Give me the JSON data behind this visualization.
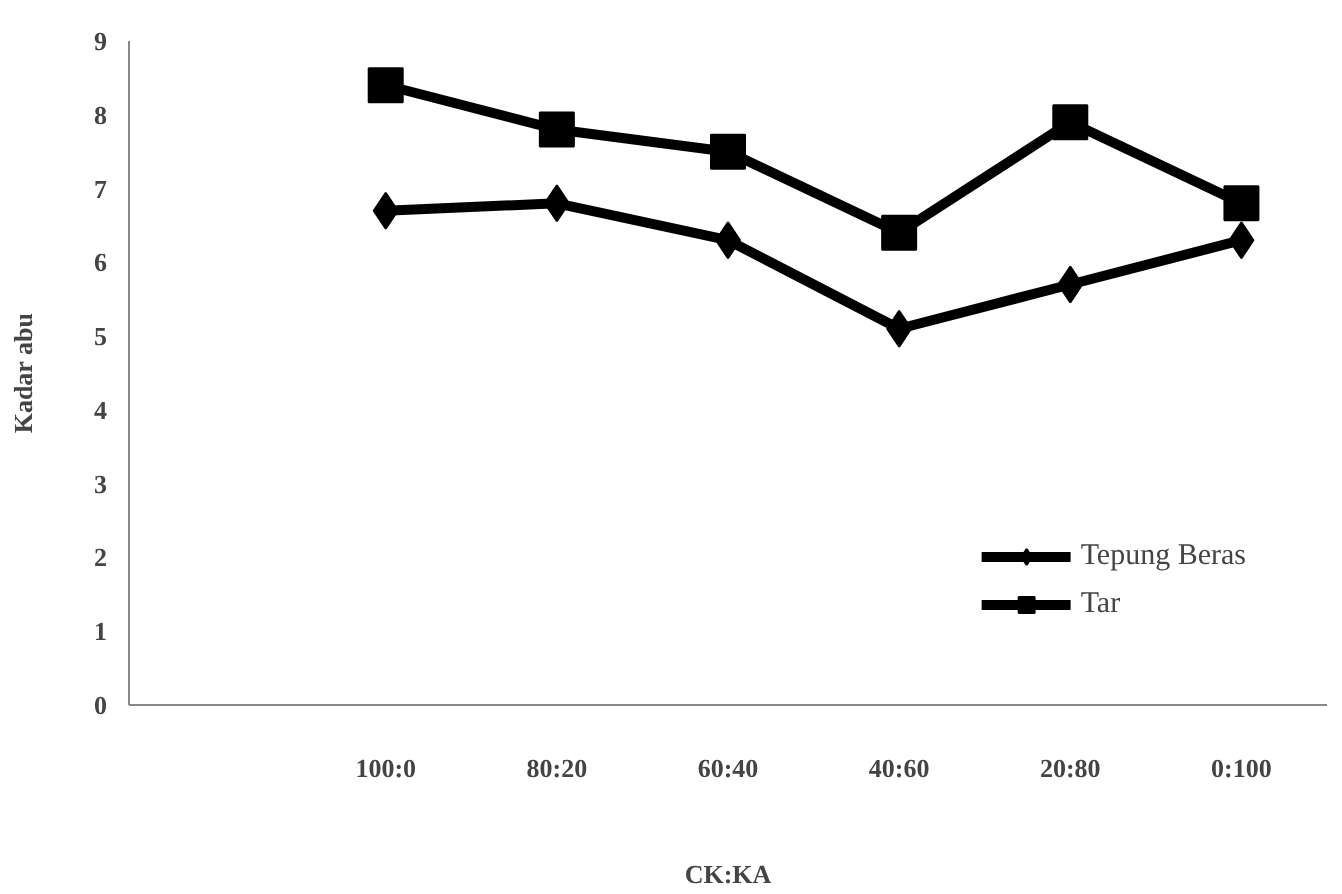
{
  "chart_data": {
    "type": "line",
    "xlabel": "CK:KA",
    "ylabel": "Kadar abu",
    "categories": [
      null,
      "100:0",
      "80:20",
      "60:40",
      "40:60",
      "20:80",
      "0:100"
    ],
    "series": [
      {
        "name": "Tepung Beras",
        "color": "#000000",
        "marker": "diamond",
        "values": [
          null,
          6.7,
          6.8,
          6.3,
          5.1,
          5.7,
          6.3
        ]
      },
      {
        "name": "Tar",
        "color": "#000000",
        "marker": "square",
        "values": [
          null,
          8.4,
          7.8,
          7.5,
          6.4,
          7.9,
          6.8
        ]
      }
    ],
    "ylim": [
      0,
      9
    ],
    "yticks": [
      0,
      1,
      2,
      3,
      4,
      5,
      6,
      7,
      8,
      9
    ],
    "grid": false,
    "legend": "bottom right"
  }
}
